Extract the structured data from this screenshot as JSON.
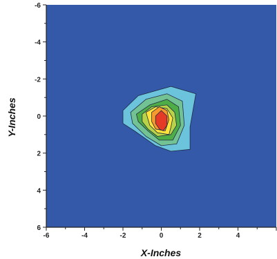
{
  "chart_data": {
    "type": "contour",
    "title": "",
    "xlabel": "X-Inches",
    "ylabel": "Y-Inches",
    "xlim": [
      -6,
      6
    ],
    "ylim": [
      -6,
      6
    ],
    "y_axis_inverted": true,
    "x_ticks": [
      -6,
      -4,
      -2,
      0,
      2,
      4
    ],
    "y_ticks": [
      -6,
      -4,
      -2,
      0,
      2,
      4,
      6
    ],
    "x_tick_labels": [
      "-6",
      "-4",
      "-2",
      "0",
      "2",
      "4"
    ],
    "y_tick_labels": [
      "-6",
      "-4",
      "-2",
      "0",
      "2",
      "4",
      "6"
    ],
    "background_color": "#3359A8",
    "grid": false,
    "legend": "none",
    "peak": {
      "x": 0.0,
      "y": 0.3
    },
    "contour_levels": [
      {
        "color": "#6BC4DC",
        "polygon": [
          [
            -2.0,
            -0.3
          ],
          [
            -1.2,
            -1.1
          ],
          [
            0.5,
            -1.6
          ],
          [
            1.8,
            -1.2
          ],
          [
            1.5,
            0.6
          ],
          [
            1.5,
            1.8
          ],
          [
            0.5,
            1.9
          ],
          [
            -0.3,
            1.6
          ],
          [
            -1.4,
            0.8
          ],
          [
            -2.0,
            0.4
          ]
        ]
      },
      {
        "color": "#73C293",
        "polygon": [
          [
            -1.6,
            -0.2
          ],
          [
            -0.8,
            -0.9
          ],
          [
            0.3,
            -1.2
          ],
          [
            1.1,
            -0.8
          ],
          [
            1.2,
            0.5
          ],
          [
            0.8,
            1.5
          ],
          [
            0.0,
            1.6
          ],
          [
            -0.8,
            1.1
          ],
          [
            -1.5,
            0.4
          ]
        ]
      },
      {
        "color": "#4FAD48",
        "polygon": [
          [
            -1.3,
            -0.1
          ],
          [
            -0.6,
            -0.6
          ],
          [
            0.3,
            -0.9
          ],
          [
            0.9,
            -0.5
          ],
          [
            1.0,
            0.5
          ],
          [
            0.6,
            1.3
          ],
          [
            -0.1,
            1.3
          ],
          [
            -0.7,
            0.8
          ],
          [
            -1.2,
            0.3
          ]
        ]
      },
      {
        "color": "#B8D347",
        "polygon": [
          [
            -1.0,
            -0.1
          ],
          [
            -0.5,
            -0.5
          ],
          [
            0.3,
            -0.6
          ],
          [
            0.7,
            -0.2
          ],
          [
            0.8,
            0.5
          ],
          [
            0.5,
            1.0
          ],
          [
            -0.2,
            1.1
          ],
          [
            -0.7,
            0.7
          ],
          [
            -1.0,
            0.3
          ]
        ]
      },
      {
        "color": "#FFE23A",
        "polygon": [
          [
            -0.8,
            -0.2
          ],
          [
            -0.3,
            -0.5
          ],
          [
            0.3,
            -0.4
          ],
          [
            0.6,
            0.1
          ],
          [
            0.5,
            0.6
          ],
          [
            0.4,
            1.0
          ],
          [
            -0.2,
            0.9
          ],
          [
            -0.6,
            0.5
          ]
        ]
      },
      {
        "color": "#F79A2E",
        "polygon": [
          [
            -0.5,
            -0.2
          ],
          [
            -0.1,
            -0.5
          ],
          [
            0.3,
            -0.3
          ],
          [
            0.4,
            0.2
          ],
          [
            0.2,
            0.8
          ],
          [
            -0.3,
            0.7
          ],
          [
            -0.5,
            0.3
          ]
        ]
      },
      {
        "color": "#E43A26",
        "polygon": [
          [
            -0.3,
            0.0
          ],
          [
            0.0,
            -0.3
          ],
          [
            0.3,
            0.0
          ],
          [
            0.3,
            0.5
          ],
          [
            0.1,
            0.8
          ],
          [
            -0.1,
            0.7
          ],
          [
            -0.3,
            0.4
          ]
        ]
      }
    ]
  }
}
